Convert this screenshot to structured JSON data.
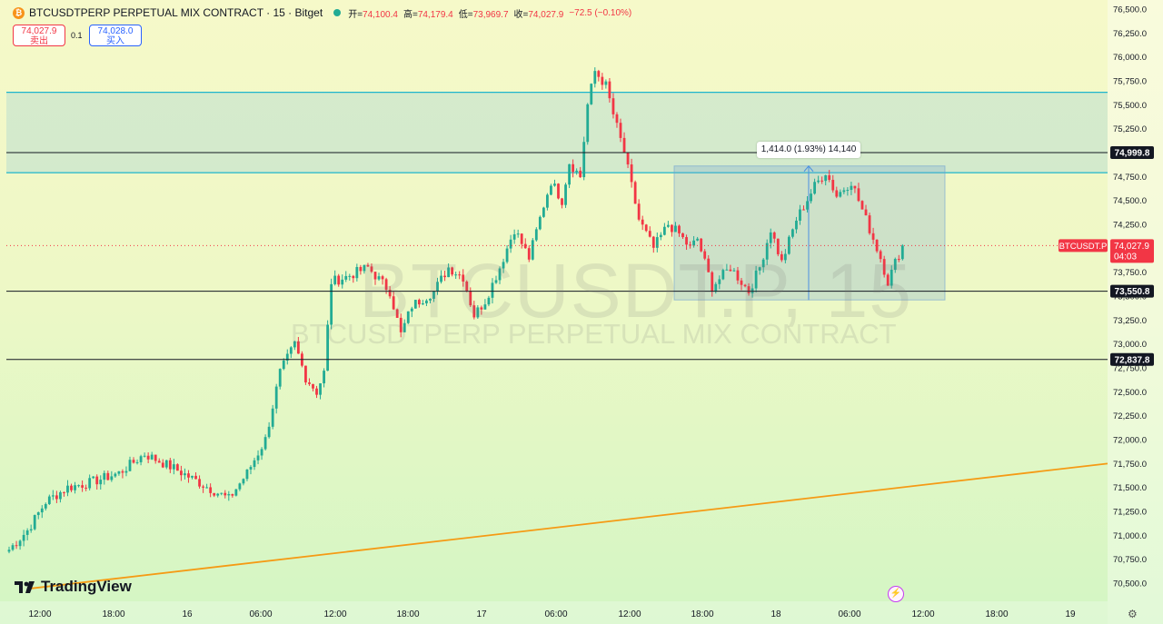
{
  "header": {
    "symbol_title": "BTCUSDTPERP PERPETUAL MIX CONTRACT · 15 · Bitget",
    "btc_icon_char": "₿",
    "open_label": "开",
    "open_value": "74,100.4",
    "high_label": "高",
    "high_value": "74,179.4",
    "low_label": "低",
    "low_value": "73,969.7",
    "close_label": "收",
    "close_value": "74,027.9",
    "change_value": "−72.5 (−0.10%)"
  },
  "trade": {
    "sell_price": "74,027.9",
    "sell_label": "卖出",
    "buy_price": "74,028.0",
    "buy_label": "买入",
    "spread": "0.1"
  },
  "watermark": {
    "ticker": "BTCUSDT.P, 15",
    "name": "BTCUSDTPERP PERPETUAL MIX CONTRACT"
  },
  "measure": {
    "label": "1,414.0 (1.93%) 14,140"
  },
  "logo": {
    "text": "TradingView"
  },
  "colors": {
    "up": "#22ab94",
    "down": "#f23645",
    "zone": "#1fb5cc",
    "trend": "#f59a14",
    "bolt": "#c63cf0"
  },
  "icons": {
    "bolt": "lightning-icon",
    "settings": "gear-icon",
    "logo": "tradingview-logo-icon"
  },
  "chart_data": {
    "type": "candlestick",
    "timeframe": "15",
    "y_axis": {
      "range": [
        70400,
        76550
      ],
      "ticks": [
        70500,
        70750,
        71000,
        71250,
        71500,
        71750,
        72000,
        72250,
        72500,
        72750,
        73000,
        73250,
        73500,
        73750,
        74000,
        74250,
        74500,
        74750,
        75000,
        75250,
        75500,
        75750,
        76000,
        76250,
        76500
      ],
      "tick_labels": [
        "70,500.0",
        "70,750.0",
        "71,000.0",
        "71,250.0",
        "71,500.0",
        "71,750.0",
        "72,000.0",
        "72,250.0",
        "72,500.0",
        "72,750.0",
        "73,000.0",
        "73,250.0",
        "73,500.0",
        "73,750.0",
        "74,000.0",
        "74,250.0",
        "74,500.0",
        "74,750.0",
        "75,000.0",
        "75,250.0",
        "75,500.0",
        "75,750.0",
        "76,000.0",
        "76,250.0",
        "76,500.0"
      ]
    },
    "x_axis": {
      "tick_labels": [
        "12:00",
        "18:00",
        "16",
        "06:00",
        "12:00",
        "18:00",
        "17",
        "06:00",
        "12:00",
        "18:00",
        "18",
        "06:00",
        "12:00",
        "18:00",
        "19"
      ]
    },
    "horizontal_lines": [
      {
        "value": 74999.8,
        "label": "74,999.8"
      },
      {
        "value": 73550.8,
        "label": "73,550.8"
      },
      {
        "value": 72837.8,
        "label": "72,837.8"
      }
    ],
    "zone": {
      "top": 75630,
      "bottom": 74790
    },
    "measure_range": {
      "bottom": 73460,
      "top": 74860,
      "change": 1414.0,
      "percent": 1.93,
      "bars": 14140
    },
    "trendline": {
      "start_value": 70440,
      "end_value": 71750
    },
    "last_price": {
      "symbol": "BTCUSDT.P",
      "value": 74027.9,
      "label": "74,027.9",
      "countdown": "04:03"
    },
    "anchors": [
      [
        0,
        70850
      ],
      [
        5,
        71050
      ],
      [
        10,
        71350
      ],
      [
        16,
        71500
      ],
      [
        22,
        71550
      ],
      [
        30,
        71650
      ],
      [
        37,
        71850
      ],
      [
        45,
        71700
      ],
      [
        52,
        71550
      ],
      [
        60,
        71380
      ],
      [
        65,
        71650
      ],
      [
        70,
        72000
      ],
      [
        74,
        72700
      ],
      [
        78,
        73000
      ],
      [
        81,
        72650
      ],
      [
        84,
        72500
      ],
      [
        86,
        72700
      ],
      [
        88,
        73650
      ],
      [
        92,
        73700
      ],
      [
        98,
        73800
      ],
      [
        104,
        73550
      ],
      [
        107,
        73100
      ],
      [
        110,
        73400
      ],
      [
        116,
        73550
      ],
      [
        120,
        73800
      ],
      [
        124,
        73700
      ],
      [
        127,
        73300
      ],
      [
        130,
        73450
      ],
      [
        134,
        73800
      ],
      [
        138,
        74200
      ],
      [
        142,
        73900
      ],
      [
        146,
        74450
      ],
      [
        148,
        74700
      ],
      [
        151,
        74500
      ],
      [
        153,
        74900
      ],
      [
        156,
        74750
      ],
      [
        158,
        75500
      ],
      [
        160,
        75850
      ],
      [
        163,
        75700
      ],
      [
        165,
        75400
      ],
      [
        168,
        75000
      ],
      [
        172,
        74300
      ],
      [
        176,
        74000
      ],
      [
        180,
        74250
      ],
      [
        183,
        74150
      ],
      [
        186,
        74000
      ],
      [
        188,
        74100
      ],
      [
        192,
        73600
      ],
      [
        197,
        73800
      ],
      [
        202,
        73550
      ],
      [
        205,
        73800
      ],
      [
        208,
        74200
      ],
      [
        211,
        73850
      ],
      [
        215,
        74300
      ],
      [
        220,
        74650
      ],
      [
        223,
        74800
      ],
      [
        226,
        74550
      ],
      [
        230,
        74700
      ],
      [
        232,
        74500
      ],
      [
        235,
        74200
      ],
      [
        238,
        73900
      ],
      [
        240,
        73650
      ],
      [
        242,
        73850
      ],
      [
        244,
        74028
      ]
    ]
  }
}
